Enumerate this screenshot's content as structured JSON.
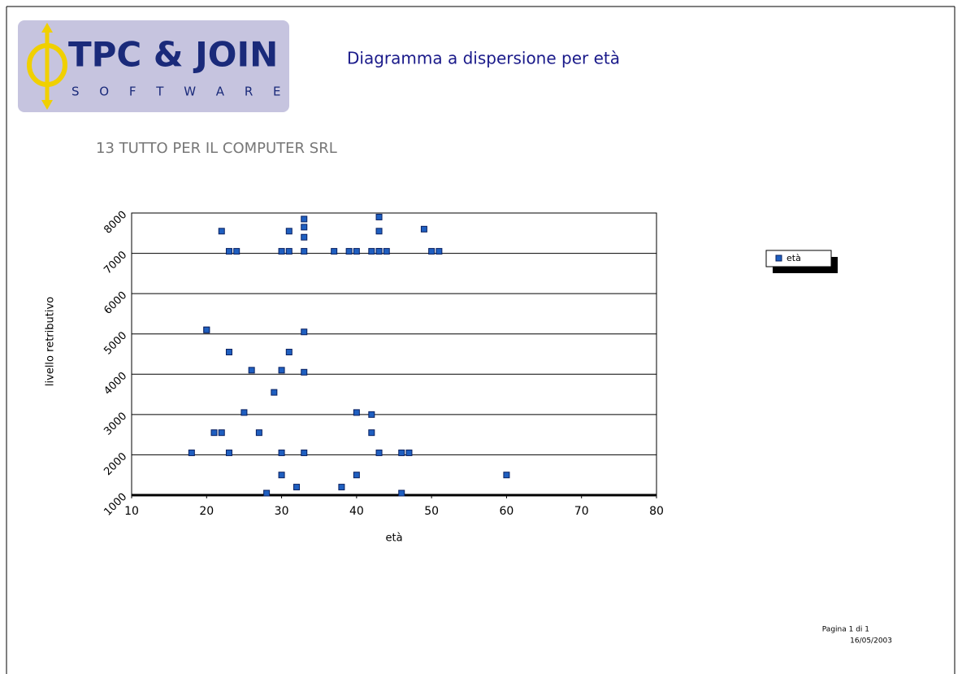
{
  "logo": {
    "brand": "TPC & JOIN",
    "tagline": "S O F T W A R E"
  },
  "chart_data": {
    "type": "scatter",
    "title": "Diagramma a dispersione per età",
    "subtitle": "13 TUTTO PER IL COMPUTER SRL",
    "xlabel": "età",
    "ylabel": "livello retributivo",
    "xlim": [
      10,
      80
    ],
    "xticks": [
      10,
      20,
      30,
      40,
      50,
      60,
      70,
      80
    ],
    "ylim": [
      1000,
      8000
    ],
    "yticks": [
      1000,
      2000,
      3000,
      4000,
      5000,
      6000,
      7000,
      8000
    ],
    "grid": true,
    "legend": "right",
    "series": [
      {
        "name": "età",
        "color": "#1f5fc0",
        "x": [
          43,
          33,
          33,
          33,
          22,
          31,
          43,
          49,
          23,
          24,
          30,
          31,
          33,
          37,
          39,
          40,
          42,
          43,
          43,
          44,
          50,
          51,
          20,
          20,
          33,
          23,
          31,
          26,
          30,
          33,
          29,
          25,
          40,
          42,
          21,
          22,
          27,
          42,
          18,
          23,
          30,
          33,
          43,
          46,
          47,
          30,
          40,
          60,
          32,
          38,
          28,
          46
        ],
        "values": [
          7900,
          7850,
          7650,
          7400,
          7550,
          7550,
          7550,
          7600,
          7050,
          7050,
          7050,
          7050,
          7050,
          7050,
          7050,
          7050,
          7050,
          7050,
          7050,
          7050,
          7050,
          7050,
          5100,
          5100,
          5050,
          4550,
          4550,
          4100,
          4100,
          4050,
          3550,
          3050,
          3050,
          3000,
          2550,
          2550,
          2550,
          2550,
          2050,
          2050,
          2050,
          2050,
          2050,
          2050,
          2050,
          1500,
          1500,
          1500,
          1200,
          1200,
          1050,
          1050
        ]
      }
    ],
    "footer": {
      "page": "Pagina 1 di 1",
      "date": "16/05/2003"
    }
  }
}
